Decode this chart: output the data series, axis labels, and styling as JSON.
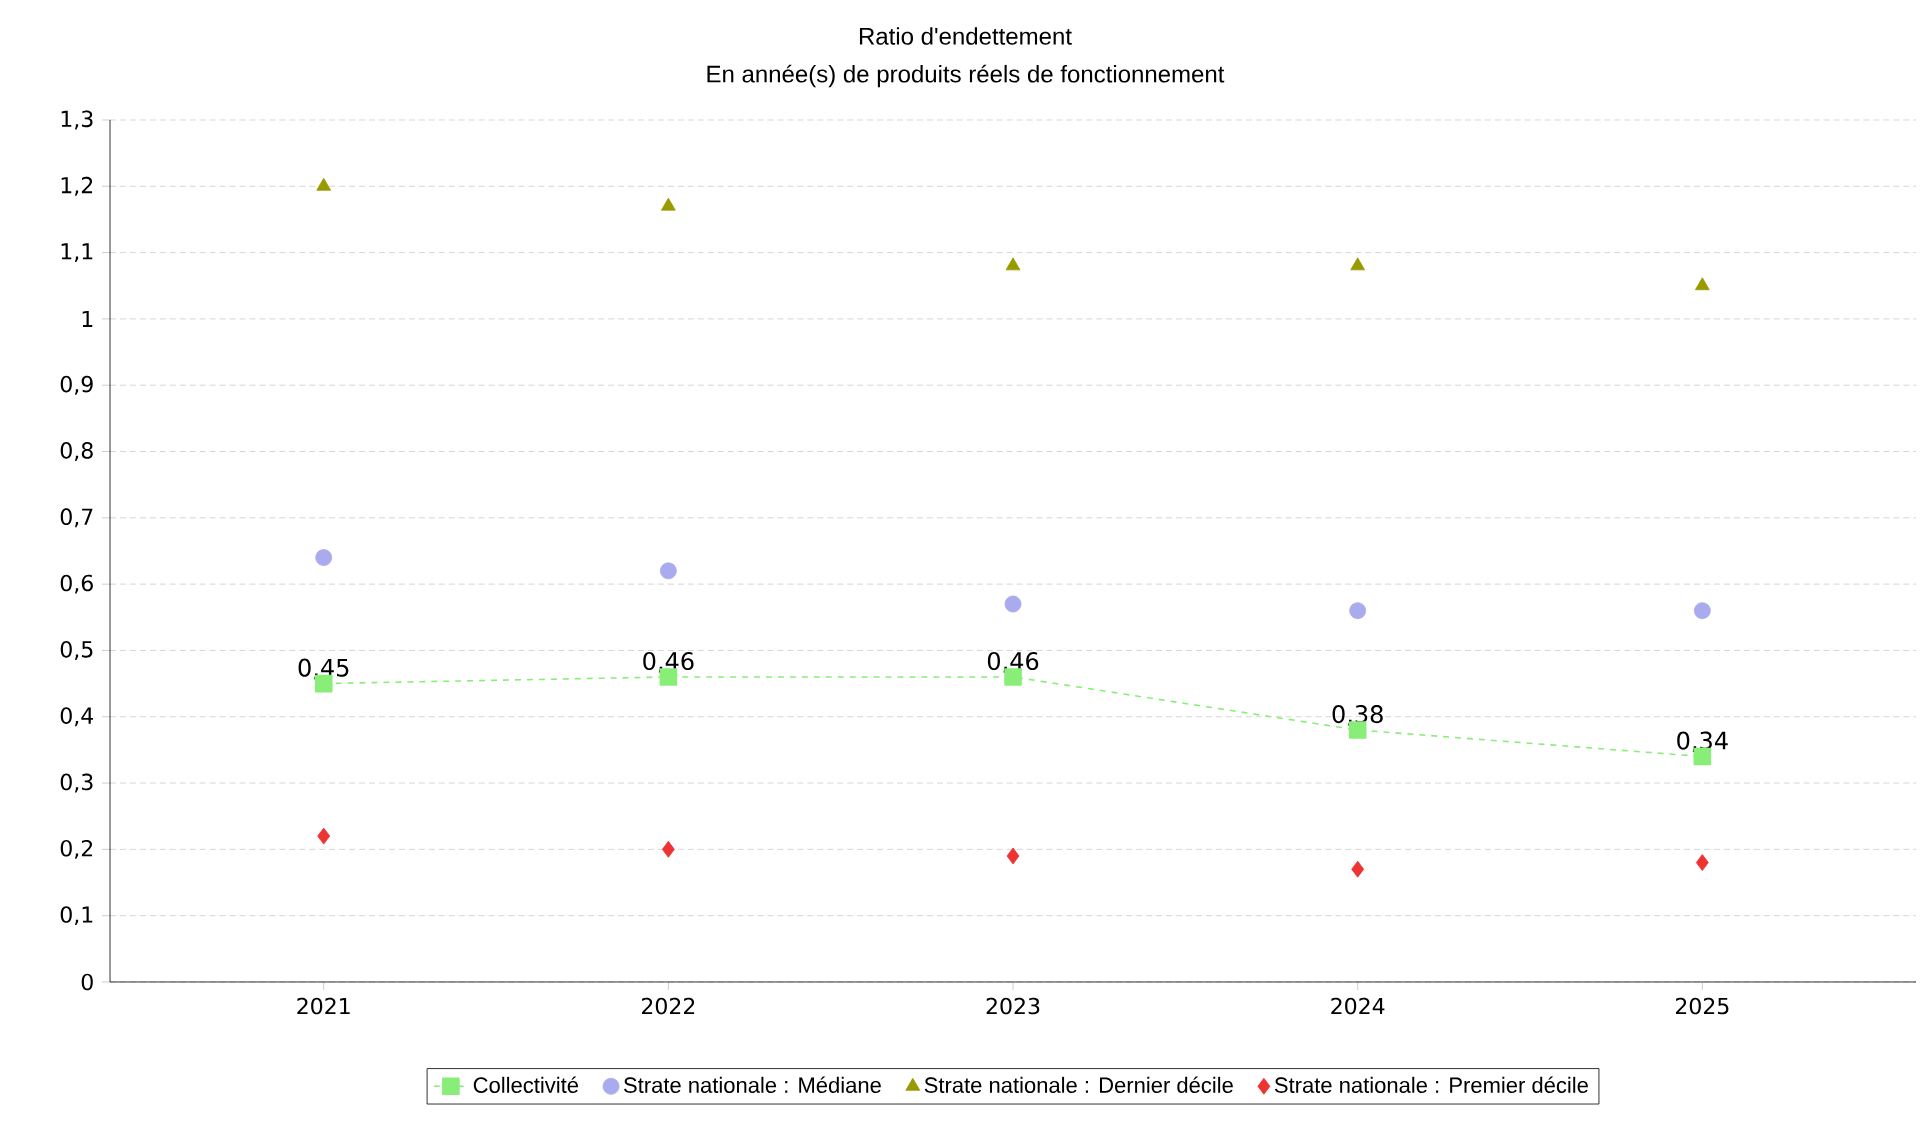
{
  "chart_data": {
    "type": "line",
    "title": "Ratio d'endettement",
    "subtitle": "En année(s) de produits réels de fonctionnement",
    "categories": [
      "2021",
      "2022",
      "2023",
      "2024",
      "2025"
    ],
    "series": [
      {
        "name": "Collectivité",
        "type": "line",
        "color": "#88ee77",
        "marker": "square",
        "line_style": "dashed",
        "values": [
          0.45,
          0.46,
          0.46,
          0.38,
          0.34
        ],
        "value_labels": [
          "0,45",
          "0,46",
          "0,46",
          "0,38",
          "0,34"
        ]
      },
      {
        "name": "Strate nationale : Médiane",
        "type": "scatter",
        "color": "#aaaaee",
        "marker": "circle",
        "values": [
          0.64,
          0.62,
          0.57,
          0.56,
          0.56
        ]
      },
      {
        "name": "Strate nationale : Dernier décile",
        "type": "scatter",
        "color": "#999900",
        "marker": "triangle",
        "values": [
          1.2,
          1.17,
          1.08,
          1.08,
          1.05
        ]
      },
      {
        "name": "Strate nationale : Premier décile",
        "type": "scatter",
        "color": "#ee3333",
        "marker": "diamond",
        "values": [
          0.22,
          0.2,
          0.19,
          0.17,
          0.18
        ]
      }
    ],
    "ylim": [
      0,
      1.3
    ],
    "yticks": [
      0,
      {
        "value": 0.1,
        "label": "0,1"
      },
      {
        "value": 0.2,
        "label": "0,2"
      },
      {
        "value": 0.3,
        "label": "0,3"
      },
      {
        "value": 0.4,
        "label": "0,4"
      },
      {
        "value": 0.5,
        "label": "0,5"
      },
      {
        "value": 0.6,
        "label": "0,6"
      },
      {
        "value": 0.7,
        "label": "0,7"
      },
      {
        "value": 0.8,
        "label": "0,8"
      },
      {
        "value": 0.9,
        "label": "0,9"
      },
      1,
      {
        "value": 1.1,
        "label": "1,1"
      },
      {
        "value": 1.2,
        "label": "1,2"
      },
      {
        "value": 1.3,
        "label": "1,3"
      }
    ],
    "grid": "y",
    "legend": "bottom"
  }
}
